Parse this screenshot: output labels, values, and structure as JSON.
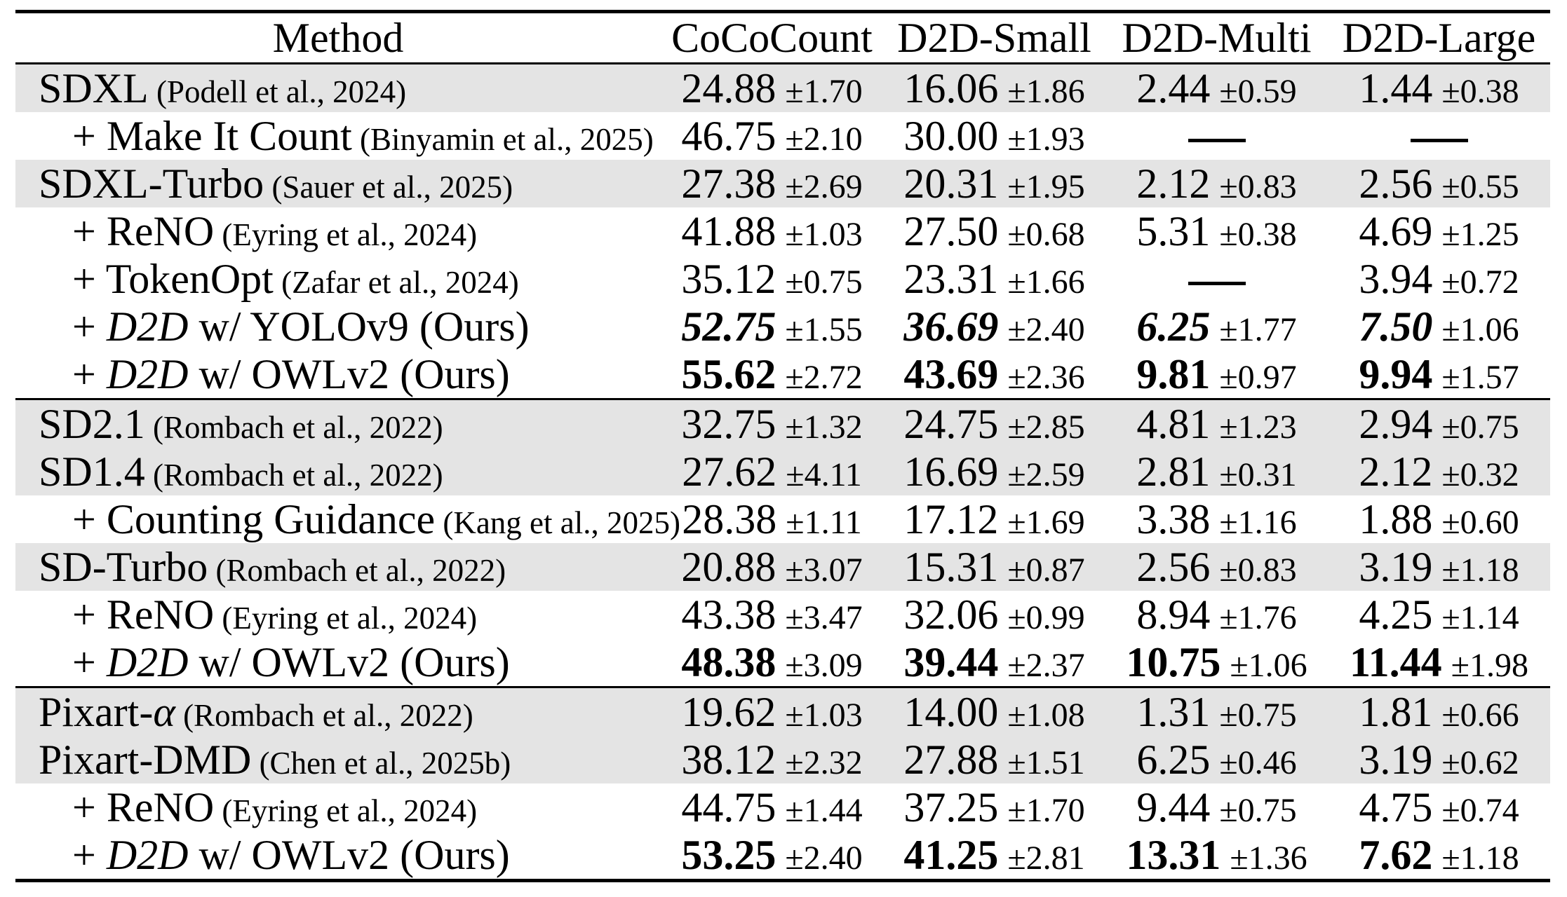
{
  "colors": {
    "row_shade": "#e4e4e4",
    "rule": "#000000",
    "text": "#000000",
    "background": "#ffffff"
  },
  "table": {
    "columns": [
      "Method",
      "CoCoCount",
      "D2D-Small",
      "D2D-Multi",
      "D2D-Large"
    ],
    "missing_value_glyph": "—",
    "rows": [
      {
        "shaded": true,
        "indent": false,
        "section_start": false,
        "method_parts": [
          {
            "text": "SDXL",
            "style": "normal"
          }
        ],
        "cite": "(Podell et al., 2024)",
        "cells": [
          {
            "value": "24.88",
            "err": "±1.70",
            "style": "normal"
          },
          {
            "value": "16.06",
            "err": "±1.86",
            "style": "normal"
          },
          {
            "value": "2.44",
            "err": "±0.59",
            "style": "normal"
          },
          {
            "value": "1.44",
            "err": "±0.38",
            "style": "normal"
          }
        ]
      },
      {
        "shaded": false,
        "indent": true,
        "section_start": false,
        "method_parts": [
          {
            "text": "+ Make It Count",
            "style": "normal"
          }
        ],
        "cite": "(Binyamin et al., 2025)",
        "cells": [
          {
            "value": "46.75",
            "err": "±2.10",
            "style": "normal"
          },
          {
            "value": "30.00",
            "err": "±1.93",
            "style": "normal"
          },
          {
            "value": "—",
            "err": "",
            "style": "dash"
          },
          {
            "value": "—",
            "err": "",
            "style": "dash"
          }
        ]
      },
      {
        "shaded": true,
        "indent": false,
        "section_start": false,
        "method_parts": [
          {
            "text": "SDXL-Turbo",
            "style": "normal"
          }
        ],
        "cite": "(Sauer et al., 2025)",
        "cells": [
          {
            "value": "27.38",
            "err": "±2.69",
            "style": "normal"
          },
          {
            "value": "20.31",
            "err": "±1.95",
            "style": "normal"
          },
          {
            "value": "2.12",
            "err": "±0.83",
            "style": "normal"
          },
          {
            "value": "2.56",
            "err": "±0.55",
            "style": "normal"
          }
        ]
      },
      {
        "shaded": false,
        "indent": true,
        "section_start": false,
        "method_parts": [
          {
            "text": "+ ReNO",
            "style": "normal"
          }
        ],
        "cite": "(Eyring et al., 2024)",
        "cells": [
          {
            "value": "41.88",
            "err": "±1.03",
            "style": "normal"
          },
          {
            "value": "27.50",
            "err": "±0.68",
            "style": "normal"
          },
          {
            "value": "5.31",
            "err": "±0.38",
            "style": "normal"
          },
          {
            "value": "4.69",
            "err": "±1.25",
            "style": "normal"
          }
        ]
      },
      {
        "shaded": false,
        "indent": true,
        "section_start": false,
        "method_parts": [
          {
            "text": "+ TokenOpt",
            "style": "normal"
          }
        ],
        "cite": "(Zafar et al., 2024)",
        "cells": [
          {
            "value": "35.12",
            "err": "±0.75",
            "style": "normal"
          },
          {
            "value": "23.31",
            "err": "±1.66",
            "style": "normal"
          },
          {
            "value": "—",
            "err": "",
            "style": "dash"
          },
          {
            "value": "3.94",
            "err": "±0.72",
            "style": "normal"
          }
        ]
      },
      {
        "shaded": false,
        "indent": true,
        "section_start": false,
        "method_parts": [
          {
            "text": "+ ",
            "style": "normal"
          },
          {
            "text": "D2D",
            "style": "italic"
          },
          {
            "text": " w/ YOLOv9 (Ours)",
            "style": "normal"
          }
        ],
        "cite": "",
        "cells": [
          {
            "value": "52.75",
            "err": "±1.55",
            "style": "bolditalic"
          },
          {
            "value": "36.69",
            "err": "±2.40",
            "style": "bolditalic"
          },
          {
            "value": "6.25",
            "err": "±1.77",
            "style": "bolditalic"
          },
          {
            "value": "7.50",
            "err": "±1.06",
            "style": "bolditalic"
          }
        ]
      },
      {
        "shaded": false,
        "indent": true,
        "section_start": false,
        "method_parts": [
          {
            "text": "+ ",
            "style": "normal"
          },
          {
            "text": "D2D",
            "style": "italic"
          },
          {
            "text": " w/ OWLv2 (Ours)",
            "style": "normal"
          }
        ],
        "cite": "",
        "cells": [
          {
            "value": "55.62",
            "err": "±2.72",
            "style": "bold"
          },
          {
            "value": "43.69",
            "err": "±2.36",
            "style": "bold"
          },
          {
            "value": "9.81",
            "err": "±0.97",
            "style": "bold"
          },
          {
            "value": "9.94",
            "err": "±1.57",
            "style": "bold"
          }
        ]
      },
      {
        "shaded": true,
        "indent": false,
        "section_start": true,
        "method_parts": [
          {
            "text": "SD2.1",
            "style": "normal"
          }
        ],
        "cite": "(Rombach et al., 2022)",
        "cells": [
          {
            "value": "32.75",
            "err": "±1.32",
            "style": "normal"
          },
          {
            "value": "24.75",
            "err": "±2.85",
            "style": "normal"
          },
          {
            "value": "4.81",
            "err": "±1.23",
            "style": "normal"
          },
          {
            "value": "2.94",
            "err": "±0.75",
            "style": "normal"
          }
        ]
      },
      {
        "shaded": true,
        "indent": false,
        "section_start": false,
        "method_parts": [
          {
            "text": "SD1.4",
            "style": "normal"
          }
        ],
        "cite": "(Rombach et al., 2022)",
        "cells": [
          {
            "value": "27.62",
            "err": "±4.11",
            "style": "normal"
          },
          {
            "value": "16.69",
            "err": "±2.59",
            "style": "normal"
          },
          {
            "value": "2.81",
            "err": "±0.31",
            "style": "normal"
          },
          {
            "value": "2.12",
            "err": "±0.32",
            "style": "normal"
          }
        ]
      },
      {
        "shaded": false,
        "indent": true,
        "section_start": false,
        "method_parts": [
          {
            "text": "+ Counting Guidance",
            "style": "normal"
          }
        ],
        "cite": "(Kang et al., 2025)",
        "cells": [
          {
            "value": "28.38",
            "err": "±1.11",
            "style": "normal"
          },
          {
            "value": "17.12",
            "err": "±1.69",
            "style": "normal"
          },
          {
            "value": "3.38",
            "err": "±1.16",
            "style": "normal"
          },
          {
            "value": "1.88",
            "err": "±0.60",
            "style": "normal"
          }
        ]
      },
      {
        "shaded": true,
        "indent": false,
        "section_start": false,
        "method_parts": [
          {
            "text": "SD-Turbo",
            "style": "normal"
          }
        ],
        "cite": "(Rombach et al., 2022)",
        "cells": [
          {
            "value": "20.88",
            "err": "±3.07",
            "style": "normal"
          },
          {
            "value": "15.31",
            "err": "±0.87",
            "style": "normal"
          },
          {
            "value": "2.56",
            "err": "±0.83",
            "style": "normal"
          },
          {
            "value": "3.19",
            "err": "±1.18",
            "style": "normal"
          }
        ]
      },
      {
        "shaded": false,
        "indent": true,
        "section_start": false,
        "method_parts": [
          {
            "text": "+ ReNO",
            "style": "normal"
          }
        ],
        "cite": "(Eyring et al., 2024)",
        "cells": [
          {
            "value": "43.38",
            "err": "±3.47",
            "style": "normal"
          },
          {
            "value": "32.06",
            "err": "±0.99",
            "style": "normal"
          },
          {
            "value": "8.94",
            "err": "±1.76",
            "style": "normal"
          },
          {
            "value": "4.25",
            "err": "±1.14",
            "style": "normal"
          }
        ]
      },
      {
        "shaded": false,
        "indent": true,
        "section_start": false,
        "method_parts": [
          {
            "text": "+ ",
            "style": "normal"
          },
          {
            "text": "D2D",
            "style": "italic"
          },
          {
            "text": " w/ OWLv2 (Ours)",
            "style": "normal"
          }
        ],
        "cite": "",
        "cells": [
          {
            "value": "48.38",
            "err": "±3.09",
            "style": "bold"
          },
          {
            "value": "39.44",
            "err": "±2.37",
            "style": "bold"
          },
          {
            "value": "10.75",
            "err": "±1.06",
            "style": "bold"
          },
          {
            "value": "11.44",
            "err": "±1.98",
            "style": "bold"
          }
        ]
      },
      {
        "shaded": true,
        "indent": false,
        "section_start": true,
        "method_parts": [
          {
            "text": "Pixart-",
            "style": "normal"
          },
          {
            "text": "α",
            "style": "italic"
          }
        ],
        "cite": "(Rombach et al., 2022)",
        "cells": [
          {
            "value": "19.62",
            "err": "±1.03",
            "style": "normal"
          },
          {
            "value": "14.00",
            "err": "±1.08",
            "style": "normal"
          },
          {
            "value": "1.31",
            "err": "±0.75",
            "style": "normal"
          },
          {
            "value": "1.81",
            "err": "±0.66",
            "style": "normal"
          }
        ]
      },
      {
        "shaded": true,
        "indent": false,
        "section_start": false,
        "method_parts": [
          {
            "text": "Pixart-DMD",
            "style": "normal"
          }
        ],
        "cite": "(Chen et al., 2025b)",
        "cells": [
          {
            "value": "38.12",
            "err": "±2.32",
            "style": "normal"
          },
          {
            "value": "27.88",
            "err": "±1.51",
            "style": "normal"
          },
          {
            "value": "6.25",
            "err": "±0.46",
            "style": "normal"
          },
          {
            "value": "3.19",
            "err": "±0.62",
            "style": "normal"
          }
        ]
      },
      {
        "shaded": false,
        "indent": true,
        "section_start": false,
        "method_parts": [
          {
            "text": "+ ReNO",
            "style": "normal"
          }
        ],
        "cite": "(Eyring et al., 2024)",
        "cells": [
          {
            "value": "44.75",
            "err": "±1.44",
            "style": "normal"
          },
          {
            "value": "37.25",
            "err": "±1.70",
            "style": "normal"
          },
          {
            "value": "9.44",
            "err": "±0.75",
            "style": "normal"
          },
          {
            "value": "4.75",
            "err": "±0.74",
            "style": "normal"
          }
        ]
      },
      {
        "shaded": false,
        "indent": true,
        "section_start": false,
        "method_parts": [
          {
            "text": "+ ",
            "style": "normal"
          },
          {
            "text": "D2D",
            "style": "italic"
          },
          {
            "text": " w/ OWLv2 (Ours)",
            "style": "normal"
          }
        ],
        "cite": "",
        "cells": [
          {
            "value": "53.25",
            "err": "±2.40",
            "style": "bold"
          },
          {
            "value": "41.25",
            "err": "±2.81",
            "style": "bold"
          },
          {
            "value": "13.31",
            "err": "±1.36",
            "style": "bold"
          },
          {
            "value": "7.62",
            "err": "±1.18",
            "style": "bold"
          }
        ]
      }
    ]
  }
}
